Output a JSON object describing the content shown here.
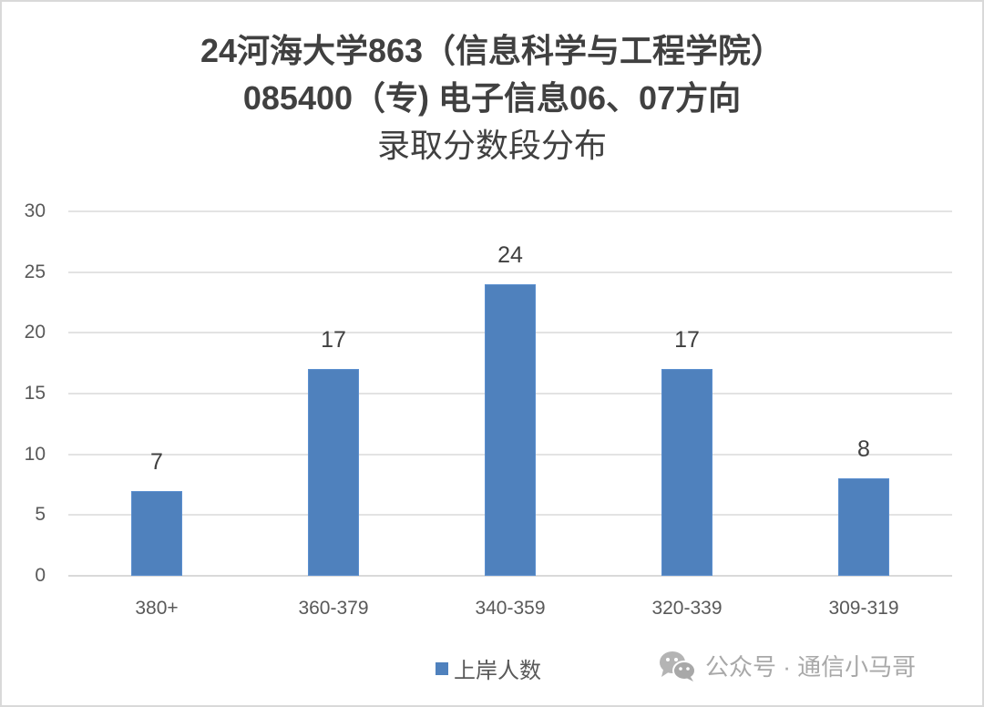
{
  "chart_data": {
    "type": "bar",
    "title": "24河海大学863（信息科学与工程学院） 085400（专) 电子信息06、07方向 录取分数段分布",
    "title_lines": [
      "24河海大学863（信息科学与工程学院）",
      "085400（专) 电子信息06、07方向",
      "录取分数段分布"
    ],
    "categories": [
      "380+",
      "360-379",
      "340-359",
      "320-339",
      "309-319"
    ],
    "series": [
      {
        "name": "上岸人数",
        "values": [
          7,
          17,
          24,
          17,
          8
        ],
        "color": "#4f81bd"
      }
    ],
    "values": [
      7,
      17,
      24,
      17,
      8
    ],
    "xlabel": "",
    "ylabel": "",
    "ylim": [
      0,
      30
    ],
    "yticks": [
      "0",
      "5",
      "10",
      "15",
      "20",
      "25",
      "30"
    ],
    "grid": true,
    "legend_position": "bottom",
    "data_labels": [
      "7",
      "17",
      "24",
      "17",
      "8"
    ]
  },
  "legend": {
    "label": "上岸人数",
    "color": "#4f81bd"
  },
  "watermark": {
    "icon": "wechat-icon",
    "text": "公众号 · 通信小马哥"
  }
}
